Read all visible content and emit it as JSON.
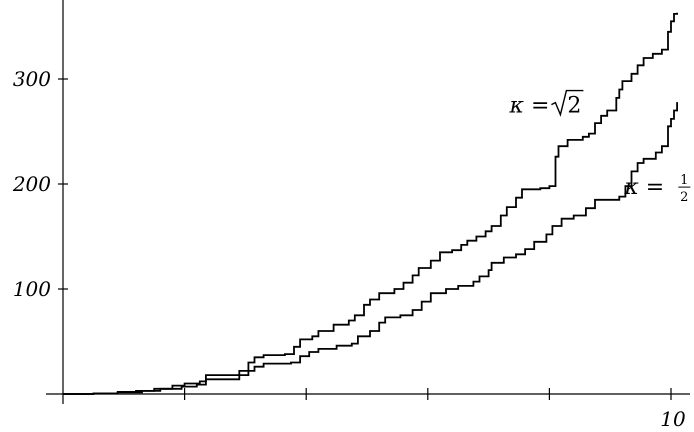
{
  "chart_data": {
    "type": "line",
    "title": "",
    "xlabel": "",
    "ylabel": "",
    "xlim": [
      0,
      10.1
    ],
    "ylim": [
      0,
      360
    ],
    "x_ticks": [
      2,
      4,
      6,
      8,
      10
    ],
    "x_tick_labels": [
      {
        "value": 10,
        "label": "10"
      }
    ],
    "y_ticks": [
      {
        "value": 100,
        "label": "100"
      },
      {
        "value": 200,
        "label": "200"
      },
      {
        "value": 300,
        "label": "300"
      }
    ],
    "grid": false,
    "legend": "none",
    "series": [
      {
        "name": "κ = √2",
        "label": {
          "prefix": "κ = ",
          "radicand": "2",
          "anchor_x": 8.0,
          "anchor_y": 268
        },
        "step": true,
        "points": [
          [
            0,
            0
          ],
          [
            0.5,
            0.5
          ],
          [
            0.9,
            2
          ],
          [
            1.2,
            3
          ],
          [
            1.5,
            5
          ],
          [
            1.8,
            8
          ],
          [
            2.0,
            10
          ],
          [
            2.25,
            12
          ],
          [
            2.35,
            18
          ],
          [
            2.9,
            22
          ],
          [
            3.05,
            30
          ],
          [
            3.15,
            35
          ],
          [
            3.3,
            37
          ],
          [
            3.65,
            38
          ],
          [
            3.8,
            45
          ],
          [
            3.9,
            52
          ],
          [
            4.1,
            55
          ],
          [
            4.2,
            60
          ],
          [
            4.45,
            66
          ],
          [
            4.7,
            70
          ],
          [
            4.8,
            75
          ],
          [
            4.95,
            85
          ],
          [
            5.05,
            90
          ],
          [
            5.2,
            96
          ],
          [
            5.45,
            100
          ],
          [
            5.6,
            106
          ],
          [
            5.75,
            113
          ],
          [
            5.85,
            120
          ],
          [
            6.05,
            127
          ],
          [
            6.2,
            135
          ],
          [
            6.4,
            137
          ],
          [
            6.55,
            142
          ],
          [
            6.65,
            146
          ],
          [
            6.8,
            150
          ],
          [
            6.95,
            155
          ],
          [
            7.05,
            160
          ],
          [
            7.2,
            170
          ],
          [
            7.3,
            178
          ],
          [
            7.45,
            187
          ],
          [
            7.55,
            195
          ],
          [
            7.85,
            196
          ],
          [
            8.0,
            198
          ],
          [
            8.1,
            226
          ],
          [
            8.15,
            236
          ],
          [
            8.3,
            242
          ],
          [
            8.55,
            245
          ],
          [
            8.65,
            248
          ],
          [
            8.75,
            258
          ],
          [
            8.85,
            265
          ],
          [
            8.95,
            270
          ],
          [
            9.1,
            282
          ],
          [
            9.15,
            290
          ],
          [
            9.2,
            298
          ],
          [
            9.35,
            305
          ],
          [
            9.45,
            313
          ],
          [
            9.55,
            320
          ],
          [
            9.7,
            324
          ],
          [
            9.85,
            328
          ],
          [
            9.95,
            345
          ],
          [
            10.0,
            355
          ],
          [
            10.05,
            362
          ],
          [
            10.1,
            363
          ]
        ]
      },
      {
        "name": "κ = 1/2",
        "label": {
          "prefix": "κ = ",
          "numerator": "1",
          "denominator": "2",
          "anchor_x": 9.15,
          "anchor_y": 198
        },
        "step": true,
        "points": [
          [
            0,
            0
          ],
          [
            0.5,
            0.5
          ],
          [
            0.9,
            1.5
          ],
          [
            1.3,
            3
          ],
          [
            1.6,
            5
          ],
          [
            1.95,
            7
          ],
          [
            2.2,
            9
          ],
          [
            2.35,
            14
          ],
          [
            2.9,
            18
          ],
          [
            3.05,
            22
          ],
          [
            3.15,
            26
          ],
          [
            3.3,
            29
          ],
          [
            3.75,
            30
          ],
          [
            3.9,
            36
          ],
          [
            4.05,
            40
          ],
          [
            4.2,
            43
          ],
          [
            4.5,
            46
          ],
          [
            4.75,
            48
          ],
          [
            4.85,
            55
          ],
          [
            5.05,
            60
          ],
          [
            5.2,
            68
          ],
          [
            5.3,
            73
          ],
          [
            5.55,
            75
          ],
          [
            5.75,
            80
          ],
          [
            5.9,
            88
          ],
          [
            6.05,
            96
          ],
          [
            6.3,
            100
          ],
          [
            6.5,
            103
          ],
          [
            6.75,
            107
          ],
          [
            6.85,
            112
          ],
          [
            7.0,
            118
          ],
          [
            7.05,
            125
          ],
          [
            7.25,
            130
          ],
          [
            7.45,
            133
          ],
          [
            7.6,
            138
          ],
          [
            7.75,
            145
          ],
          [
            7.95,
            152
          ],
          [
            8.05,
            160
          ],
          [
            8.2,
            167
          ],
          [
            8.4,
            170
          ],
          [
            8.6,
            177
          ],
          [
            8.75,
            185
          ],
          [
            9.15,
            188
          ],
          [
            9.25,
            198
          ],
          [
            9.35,
            212
          ],
          [
            9.45,
            220
          ],
          [
            9.55,
            224
          ],
          [
            9.75,
            230
          ],
          [
            9.85,
            236
          ],
          [
            9.95,
            255
          ],
          [
            10.0,
            262
          ],
          [
            10.05,
            270
          ],
          [
            10.1,
            278
          ]
        ]
      }
    ]
  }
}
